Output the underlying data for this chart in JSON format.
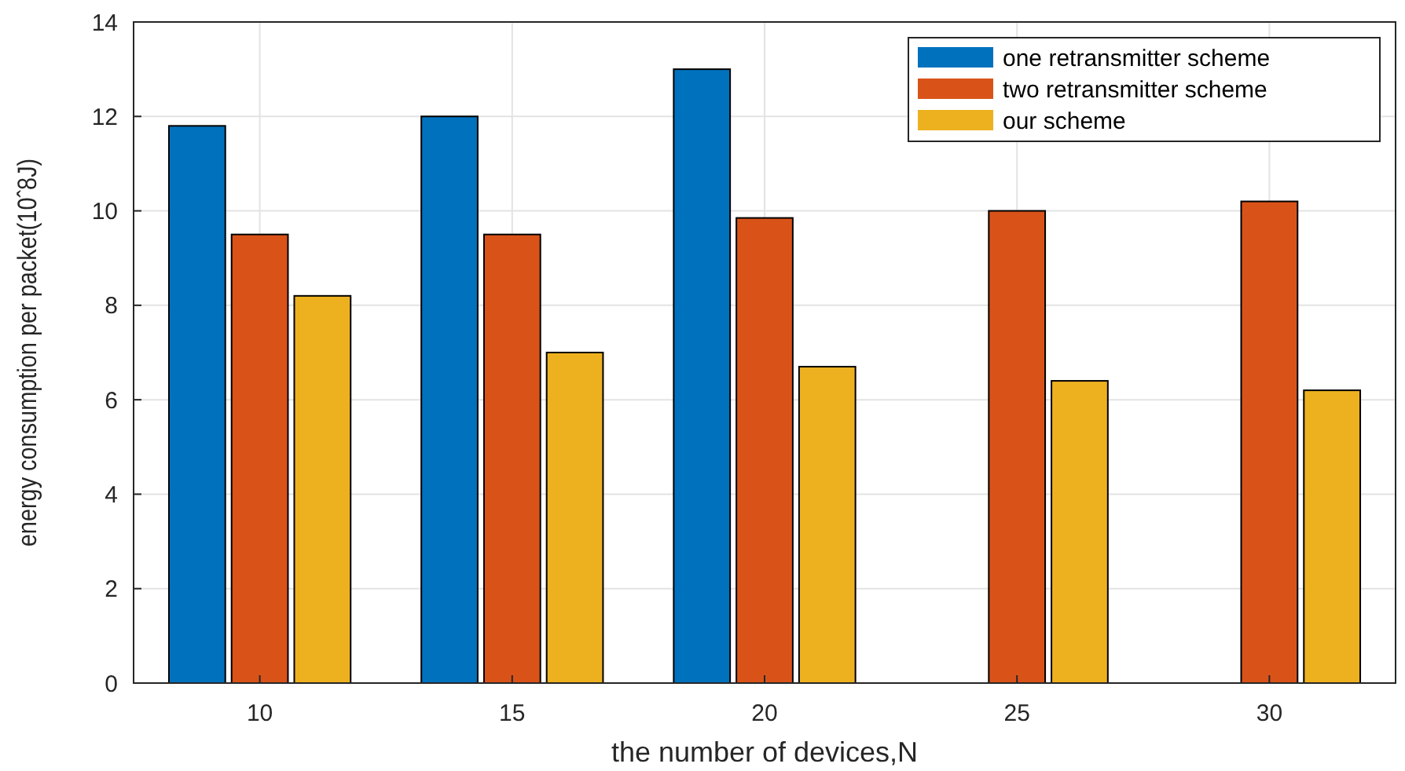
{
  "chart_data": {
    "type": "bar",
    "xlabel": "the number of devices,N",
    "ylabel": "energy consumption per packet(10ˆ8J)",
    "categories": [
      "10",
      "15",
      "20",
      "25",
      "30"
    ],
    "series": [
      {
        "name": "one retransmitter scheme",
        "color": "#0072bd",
        "values": [
          11.8,
          12,
          13,
          null,
          null
        ]
      },
      {
        "name": "two retransmitter scheme",
        "color": "#d95319",
        "values": [
          9.5,
          9.5,
          9.85,
          10,
          10.2
        ]
      },
      {
        "name": "our scheme",
        "color": "#edb120",
        "values": [
          8.2,
          7.0,
          6.7,
          6.4,
          6.2
        ]
      }
    ],
    "ylim": [
      0,
      14
    ],
    "yticks": [
      0,
      2,
      4,
      6,
      8,
      10,
      12,
      14
    ],
    "grid": true,
    "legend": "top right"
  }
}
